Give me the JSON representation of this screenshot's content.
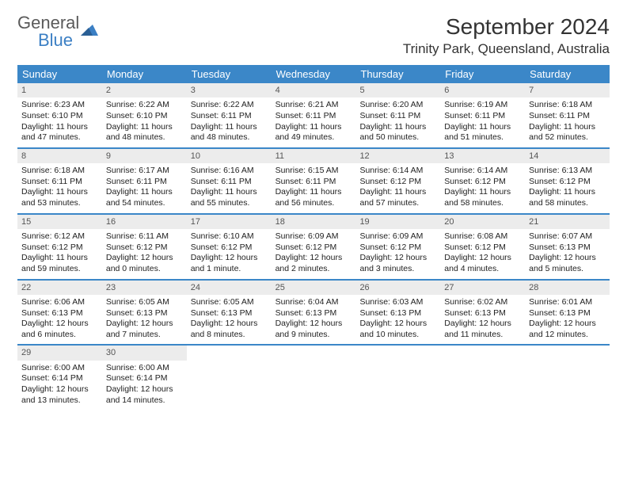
{
  "logo": {
    "general": "General",
    "blue": "Blue"
  },
  "title": "September 2024",
  "location": "Trinity Park, Queensland, Australia",
  "colors": {
    "header_bg": "#3b87c8",
    "daynum_bg": "#ececec",
    "text": "#222222",
    "title": "#333333",
    "logo_gray": "#5a5a5a",
    "logo_blue": "#3b7fc4"
  },
  "day_names": [
    "Sunday",
    "Monday",
    "Tuesday",
    "Wednesday",
    "Thursday",
    "Friday",
    "Saturday"
  ],
  "weeks": [
    [
      {
        "n": "1",
        "sr": "Sunrise: 6:23 AM",
        "ss": "Sunset: 6:10 PM",
        "dl": "Daylight: 11 hours and 47 minutes."
      },
      {
        "n": "2",
        "sr": "Sunrise: 6:22 AM",
        "ss": "Sunset: 6:10 PM",
        "dl": "Daylight: 11 hours and 48 minutes."
      },
      {
        "n": "3",
        "sr": "Sunrise: 6:22 AM",
        "ss": "Sunset: 6:11 PM",
        "dl": "Daylight: 11 hours and 48 minutes."
      },
      {
        "n": "4",
        "sr": "Sunrise: 6:21 AM",
        "ss": "Sunset: 6:11 PM",
        "dl": "Daylight: 11 hours and 49 minutes."
      },
      {
        "n": "5",
        "sr": "Sunrise: 6:20 AM",
        "ss": "Sunset: 6:11 PM",
        "dl": "Daylight: 11 hours and 50 minutes."
      },
      {
        "n": "6",
        "sr": "Sunrise: 6:19 AM",
        "ss": "Sunset: 6:11 PM",
        "dl": "Daylight: 11 hours and 51 minutes."
      },
      {
        "n": "7",
        "sr": "Sunrise: 6:18 AM",
        "ss": "Sunset: 6:11 PM",
        "dl": "Daylight: 11 hours and 52 minutes."
      }
    ],
    [
      {
        "n": "8",
        "sr": "Sunrise: 6:18 AM",
        "ss": "Sunset: 6:11 PM",
        "dl": "Daylight: 11 hours and 53 minutes."
      },
      {
        "n": "9",
        "sr": "Sunrise: 6:17 AM",
        "ss": "Sunset: 6:11 PM",
        "dl": "Daylight: 11 hours and 54 minutes."
      },
      {
        "n": "10",
        "sr": "Sunrise: 6:16 AM",
        "ss": "Sunset: 6:11 PM",
        "dl": "Daylight: 11 hours and 55 minutes."
      },
      {
        "n": "11",
        "sr": "Sunrise: 6:15 AM",
        "ss": "Sunset: 6:11 PM",
        "dl": "Daylight: 11 hours and 56 minutes."
      },
      {
        "n": "12",
        "sr": "Sunrise: 6:14 AM",
        "ss": "Sunset: 6:12 PM",
        "dl": "Daylight: 11 hours and 57 minutes."
      },
      {
        "n": "13",
        "sr": "Sunrise: 6:14 AM",
        "ss": "Sunset: 6:12 PM",
        "dl": "Daylight: 11 hours and 58 minutes."
      },
      {
        "n": "14",
        "sr": "Sunrise: 6:13 AM",
        "ss": "Sunset: 6:12 PM",
        "dl": "Daylight: 11 hours and 58 minutes."
      }
    ],
    [
      {
        "n": "15",
        "sr": "Sunrise: 6:12 AM",
        "ss": "Sunset: 6:12 PM",
        "dl": "Daylight: 11 hours and 59 minutes."
      },
      {
        "n": "16",
        "sr": "Sunrise: 6:11 AM",
        "ss": "Sunset: 6:12 PM",
        "dl": "Daylight: 12 hours and 0 minutes."
      },
      {
        "n": "17",
        "sr": "Sunrise: 6:10 AM",
        "ss": "Sunset: 6:12 PM",
        "dl": "Daylight: 12 hours and 1 minute."
      },
      {
        "n": "18",
        "sr": "Sunrise: 6:09 AM",
        "ss": "Sunset: 6:12 PM",
        "dl": "Daylight: 12 hours and 2 minutes."
      },
      {
        "n": "19",
        "sr": "Sunrise: 6:09 AM",
        "ss": "Sunset: 6:12 PM",
        "dl": "Daylight: 12 hours and 3 minutes."
      },
      {
        "n": "20",
        "sr": "Sunrise: 6:08 AM",
        "ss": "Sunset: 6:12 PM",
        "dl": "Daylight: 12 hours and 4 minutes."
      },
      {
        "n": "21",
        "sr": "Sunrise: 6:07 AM",
        "ss": "Sunset: 6:13 PM",
        "dl": "Daylight: 12 hours and 5 minutes."
      }
    ],
    [
      {
        "n": "22",
        "sr": "Sunrise: 6:06 AM",
        "ss": "Sunset: 6:13 PM",
        "dl": "Daylight: 12 hours and 6 minutes."
      },
      {
        "n": "23",
        "sr": "Sunrise: 6:05 AM",
        "ss": "Sunset: 6:13 PM",
        "dl": "Daylight: 12 hours and 7 minutes."
      },
      {
        "n": "24",
        "sr": "Sunrise: 6:05 AM",
        "ss": "Sunset: 6:13 PM",
        "dl": "Daylight: 12 hours and 8 minutes."
      },
      {
        "n": "25",
        "sr": "Sunrise: 6:04 AM",
        "ss": "Sunset: 6:13 PM",
        "dl": "Daylight: 12 hours and 9 minutes."
      },
      {
        "n": "26",
        "sr": "Sunrise: 6:03 AM",
        "ss": "Sunset: 6:13 PM",
        "dl": "Daylight: 12 hours and 10 minutes."
      },
      {
        "n": "27",
        "sr": "Sunrise: 6:02 AM",
        "ss": "Sunset: 6:13 PM",
        "dl": "Daylight: 12 hours and 11 minutes."
      },
      {
        "n": "28",
        "sr": "Sunrise: 6:01 AM",
        "ss": "Sunset: 6:13 PM",
        "dl": "Daylight: 12 hours and 12 minutes."
      }
    ],
    [
      {
        "n": "29",
        "sr": "Sunrise: 6:00 AM",
        "ss": "Sunset: 6:14 PM",
        "dl": "Daylight: 12 hours and 13 minutes."
      },
      {
        "n": "30",
        "sr": "Sunrise: 6:00 AM",
        "ss": "Sunset: 6:14 PM",
        "dl": "Daylight: 12 hours and 14 minutes."
      },
      null,
      null,
      null,
      null,
      null
    ]
  ]
}
